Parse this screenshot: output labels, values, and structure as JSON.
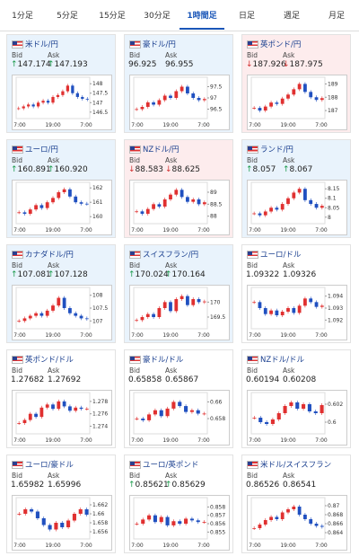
{
  "tabs": [
    "1分足",
    "5分足",
    "15分足",
    "30分足",
    "1時間足",
    "日足",
    "週足",
    "月足"
  ],
  "active_tab": 4,
  "bid_label": "Bid",
  "ask_label": "Ask",
  "x_labels": [
    "7:00",
    "19:00",
    "7:00"
  ],
  "cards": [
    {
      "name": "米ドル/円",
      "trend": "up",
      "bid": "↑147.174",
      "ask": "↑147.193",
      "ylim": [
        146.3,
        148.2
      ],
      "yticks": [
        148,
        147.5,
        147,
        146.5
      ],
      "closes": [
        146.7,
        146.8,
        146.9,
        146.8,
        147.0,
        147.1,
        147.0,
        147.3,
        147.4,
        147.6,
        147.9,
        147.5,
        147.3,
        147.2,
        147.17
      ]
    },
    {
      "name": "豪ドル/円",
      "trend": "up",
      "bid": "96.925",
      "ask": "96.955",
      "ylim": [
        96.2,
        97.8
      ],
      "yticks": [
        97.5,
        97,
        96.5
      ],
      "closes": [
        96.5,
        96.6,
        96.8,
        96.7,
        96.9,
        97.1,
        97.0,
        97.3,
        97.5,
        97.2,
        97.0,
        96.9,
        96.95
      ]
    },
    {
      "name": "英ポンド/円",
      "trend": "down",
      "bid": "↓187.926",
      "ask": "↓187.975",
      "ylim": [
        186.6,
        189.3
      ],
      "yticks": [
        189,
        188,
        187
      ],
      "closes": [
        187.2,
        187.0,
        187.3,
        187.6,
        187.5,
        187.9,
        188.2,
        188.6,
        189.0,
        188.4,
        188.0,
        187.8,
        187.93
      ]
    },
    {
      "name": "ユーロ/円",
      "trend": "up",
      "bid": "↑160.891",
      "ask": "↑160.920",
      "ylim": [
        159.7,
        162.2
      ],
      "yticks": [
        162,
        161,
        160
      ],
      "closes": [
        160.3,
        160.2,
        160.5,
        160.8,
        160.6,
        161.0,
        161.3,
        161.7,
        161.9,
        161.4,
        161.0,
        160.9,
        160.89
      ]
    },
    {
      "name": "NZドル/円",
      "trend": "down",
      "bid": "↓88.583",
      "ask": "↓88.625",
      "ylim": [
        87.8,
        89.3
      ],
      "yticks": [
        89,
        88.5,
        88
      ],
      "closes": [
        88.2,
        88.1,
        88.3,
        88.5,
        88.4,
        88.7,
        88.9,
        89.1,
        88.8,
        88.6,
        88.7,
        88.5,
        88.58
      ]
    },
    {
      "name": "ランド/円",
      "trend": "up",
      "bid": "↑8.057",
      "ask": "↑8.067",
      "ylim": [
        7.98,
        8.17
      ],
      "yticks": [
        8.15,
        8.1,
        8.05,
        8
      ],
      "closes": [
        8.02,
        8.01,
        8.03,
        8.05,
        8.04,
        8.07,
        8.1,
        8.13,
        8.15,
        8.09,
        8.07,
        8.05,
        8.06
      ]
    },
    {
      "name": "カナダドル/円",
      "trend": "up",
      "bid": "↑107.081",
      "ask": "↑107.128",
      "ylim": [
        106.8,
        108.2
      ],
      "yticks": [
        108,
        107.5,
        107
      ],
      "closes": [
        107.0,
        107.1,
        107.2,
        107.3,
        107.2,
        107.4,
        107.6,
        107.9,
        107.5,
        107.3,
        107.2,
        107.1,
        107.08
      ]
    },
    {
      "name": "スイスフラン/円",
      "trend": "up",
      "bid": "↑170.024",
      "ask": "↑170.164",
      "ylim": [
        169.2,
        170.4
      ],
      "yticks": [
        170,
        169.5
      ],
      "closes": [
        169.4,
        169.5,
        169.6,
        169.5,
        169.8,
        170.0,
        169.7,
        170.1,
        170.2,
        169.9,
        170.1,
        170.0,
        170.02
      ]
    },
    {
      "name": "ユーロ/ドル",
      "trend": "none",
      "bid": "1.09322",
      "ask": "1.09326",
      "ylim": [
        1.0915,
        1.0945
      ],
      "yticks": [
        1.094,
        1.093,
        1.092
      ],
      "closes": [
        1.0935,
        1.093,
        1.0925,
        1.0928,
        1.0924,
        1.0927,
        1.093,
        1.0926,
        1.0932,
        1.0938,
        1.0935,
        1.0931,
        1.0932
      ]
    },
    {
      "name": "英ポンド/ドル",
      "trend": "none",
      "bid": "1.27682",
      "ask": "1.27692",
      "ylim": [
        1.2732,
        1.279
      ],
      "yticks": [
        1.278,
        1.276,
        1.274
      ],
      "closes": [
        1.2745,
        1.275,
        1.276,
        1.2755,
        1.277,
        1.2775,
        1.2768,
        1.278,
        1.2772,
        1.2765,
        1.277,
        1.2768,
        1.2768
      ]
    },
    {
      "name": "豪ドル/ドル",
      "trend": "none",
      "bid": "0.65858",
      "ask": "0.65867",
      "ylim": [
        0.6565,
        0.6608
      ],
      "yticks": [
        0.66,
        0.658
      ],
      "closes": [
        0.658,
        0.6578,
        0.6585,
        0.659,
        0.6583,
        0.6592,
        0.66,
        0.6595,
        0.6588,
        0.659,
        0.6586,
        0.6586
      ]
    },
    {
      "name": "NZドル/ドル",
      "trend": "none",
      "bid": "0.60194",
      "ask": "0.60208",
      "ylim": [
        0.599,
        0.603
      ],
      "yticks": [
        0.602,
        0.6
      ],
      "closes": [
        0.6005,
        0.6,
        0.5998,
        0.6003,
        0.601,
        0.6018,
        0.6022,
        0.6015,
        0.602,
        0.6012,
        0.601,
        0.6019
      ]
    },
    {
      "name": "ユーロ/豪ドル",
      "trend": "none",
      "bid": "1.65982",
      "ask": "1.65996",
      "ylim": [
        1.655,
        1.663
      ],
      "yticks": [
        1.662,
        1.66,
        1.658,
        1.656
      ],
      "closes": [
        1.66,
        1.661,
        1.6605,
        1.659,
        1.6575,
        1.6565,
        1.658,
        1.657,
        1.6585,
        1.66,
        1.661,
        1.6598
      ]
    },
    {
      "name": "ユーロ/英ポンド",
      "trend": "none",
      "bid": "↑0.85621",
      "ask": "↑0.85629",
      "ylim": [
        0.8545,
        0.8588
      ],
      "yticks": [
        0.858,
        0.857,
        0.856,
        0.855
      ],
      "closes": [
        0.856,
        0.8565,
        0.857,
        0.8562,
        0.8568,
        0.8558,
        0.8563,
        0.856,
        0.8566,
        0.8564,
        0.8562,
        0.8562
      ]
    },
    {
      "name": "米ドル/スイスフラン",
      "trend": "none",
      "bid": "0.86526",
      "ask": "0.86541",
      "ylim": [
        0.8632,
        0.8712
      ],
      "yticks": [
        0.87,
        0.868,
        0.866,
        0.864
      ],
      "closes": [
        0.865,
        0.8658,
        0.8668,
        0.8675,
        0.867,
        0.8685,
        0.8692,
        0.8698,
        0.868,
        0.867,
        0.866,
        0.8655,
        0.8653
      ]
    }
  ]
}
